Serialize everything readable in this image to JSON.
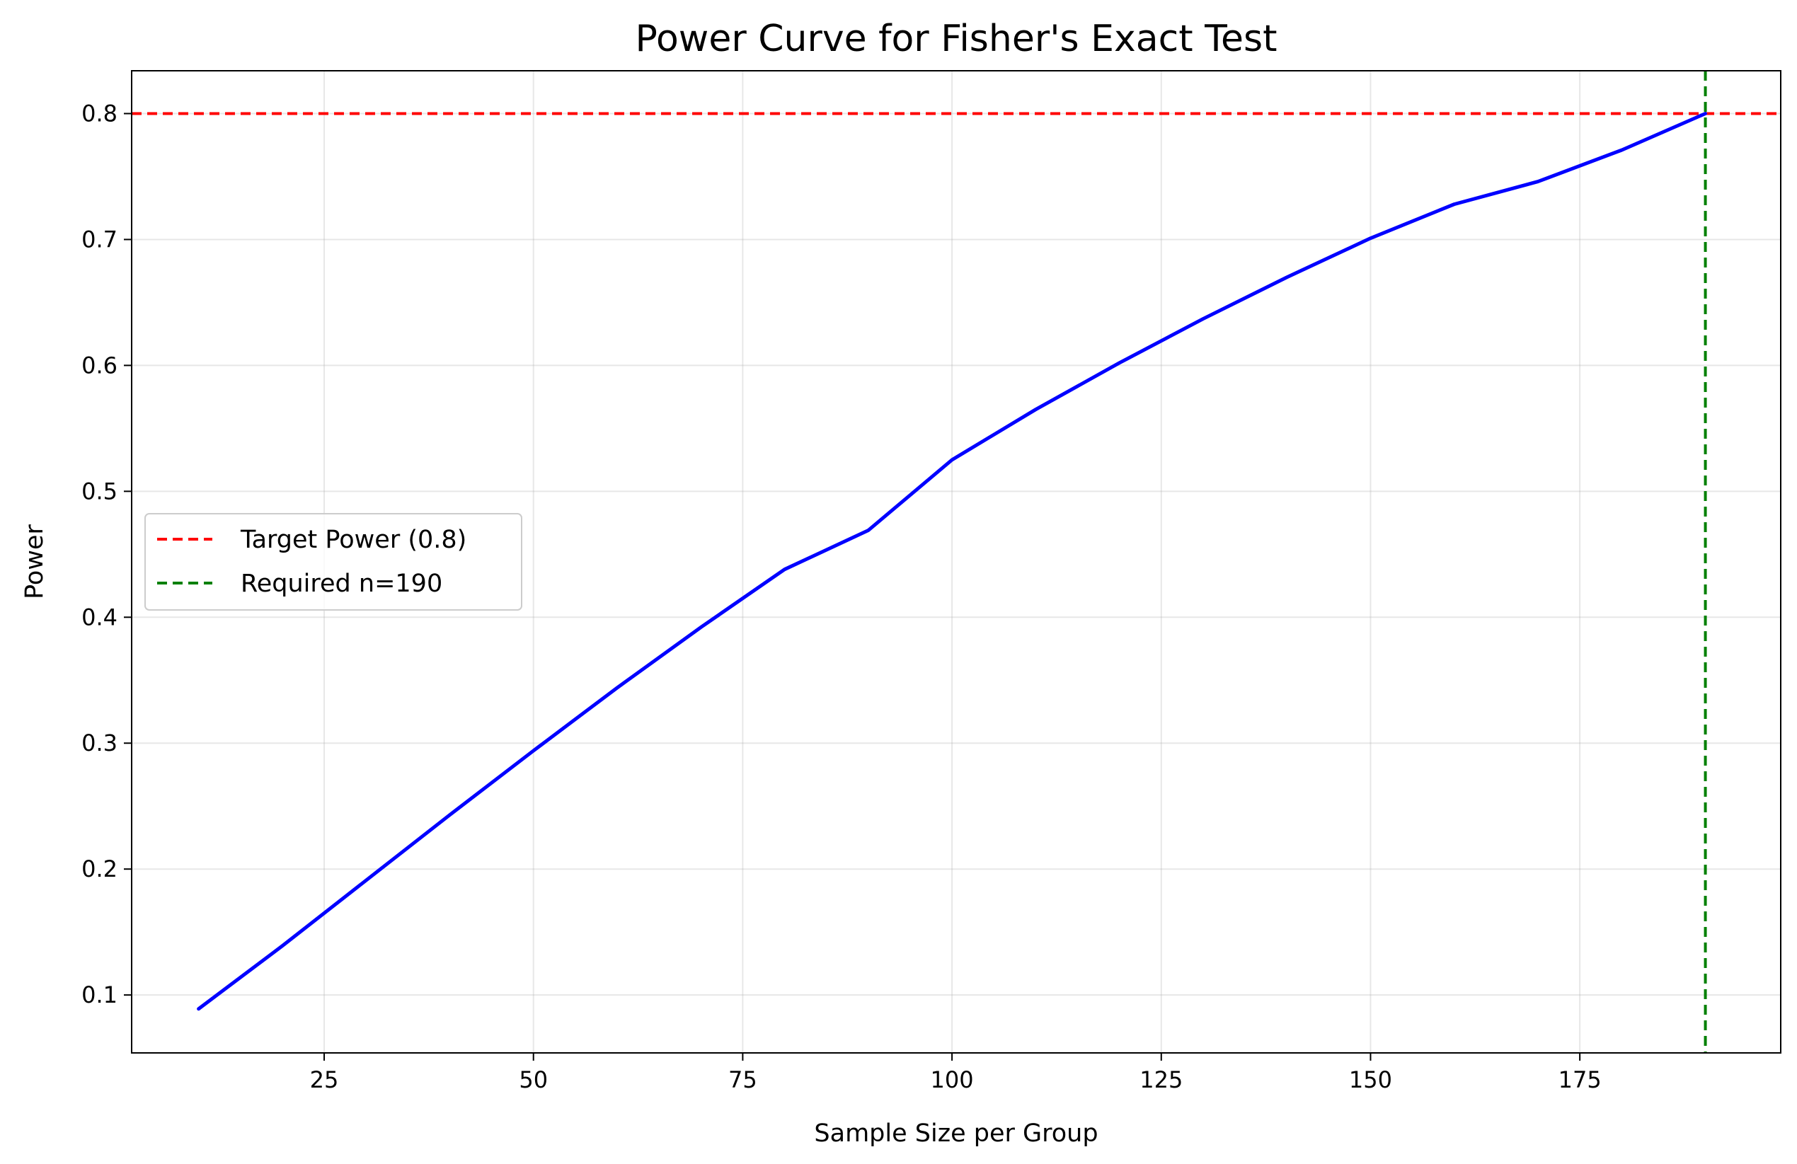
{
  "chart_data": {
    "type": "line",
    "title": "Power Curve for Fisher's Exact Test",
    "xlabel": "Sample Size per Group",
    "ylabel": "Power",
    "xlim": [
      2,
      199
    ],
    "ylim": [
      0.054,
      0.834
    ],
    "xticks": [
      25,
      50,
      75,
      100,
      125,
      150,
      175
    ],
    "yticks": [
      0.1,
      0.2,
      0.3,
      0.4,
      0.5,
      0.6,
      0.7,
      0.8
    ],
    "grid": true,
    "legend_position": "center-left",
    "series": [
      {
        "x": [
          10,
          20,
          30,
          40,
          50,
          60,
          70,
          80,
          90,
          100,
          110,
          120,
          130,
          140,
          150,
          160,
          170,
          180,
          190
        ],
        "y": [
          0.089,
          0.139,
          0.191,
          0.243,
          0.294,
          0.344,
          0.392,
          0.438,
          0.469,
          0.525,
          0.565,
          0.602,
          0.637,
          0.67,
          0.701,
          0.728,
          0.746,
          0.771,
          0.8
        ],
        "color": "#0000ff"
      }
    ],
    "reference_lines": [
      {
        "orientation": "horizontal",
        "value": 0.8,
        "name": "Target Power (0.8)",
        "color": "#ff0000",
        "style": "dashed"
      },
      {
        "orientation": "vertical",
        "value": 190,
        "name": "Required n=190",
        "color": "#008000",
        "style": "dashed"
      }
    ]
  }
}
